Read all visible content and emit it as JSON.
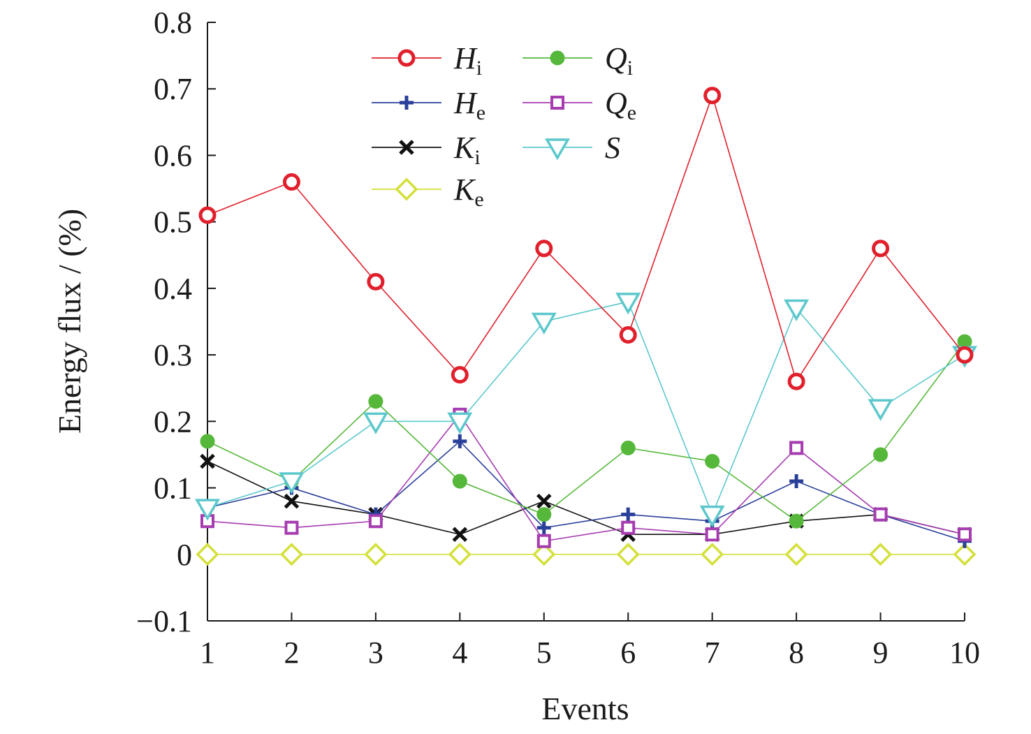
{
  "chart_data": {
    "type": "line",
    "xlabel": "Events",
    "ylabel": "Energy flux / (%)",
    "x": [
      1,
      2,
      3,
      4,
      5,
      6,
      7,
      8,
      9,
      10
    ],
    "xlim": [
      1,
      10
    ],
    "ylim": [
      -0.1,
      0.8
    ],
    "xticks": [
      "1",
      "2",
      "3",
      "4",
      "5",
      "6",
      "7",
      "8",
      "9",
      "10"
    ],
    "yticks": [
      "−0.1",
      "0",
      "0.1",
      "0.2",
      "0.3",
      "0.4",
      "0.5",
      "0.6",
      "0.7",
      "0.8"
    ],
    "ytick_values": [
      -0.1,
      0,
      0.1,
      0.2,
      0.3,
      0.4,
      0.5,
      0.6,
      0.7,
      0.8
    ],
    "grid": false,
    "legend_position": "top",
    "series": [
      {
        "name": "H",
        "sub": "i",
        "color": "#e0202c",
        "marker": "circle",
        "values": [
          0.51,
          0.56,
          0.41,
          0.27,
          0.46,
          0.33,
          0.69,
          0.26,
          0.46,
          0.3
        ]
      },
      {
        "name": "H",
        "sub": "e",
        "color": "#2a3f9a",
        "marker": "plus",
        "values": [
          0.07,
          0.1,
          0.06,
          0.17,
          0.04,
          0.06,
          0.05,
          0.11,
          0.06,
          0.02
        ]
      },
      {
        "name": "K",
        "sub": "i",
        "color": "#111111",
        "marker": "cross",
        "values": [
          0.14,
          0.08,
          0.06,
          0.03,
          0.08,
          0.03,
          0.03,
          0.05,
          0.06,
          0.03
        ]
      },
      {
        "name": "K",
        "sub": "e",
        "color": "#d4e03a",
        "marker": "diamond",
        "values": [
          0,
          0,
          0,
          0,
          0,
          0,
          0,
          0,
          0,
          0
        ]
      },
      {
        "name": "Q",
        "sub": "i",
        "color": "#55b83a",
        "marker": "dot",
        "values": [
          0.17,
          0.11,
          0.23,
          0.11,
          0.06,
          0.16,
          0.14,
          0.05,
          0.15,
          0.32
        ]
      },
      {
        "name": "Q",
        "sub": "e",
        "color": "#a63cb0",
        "marker": "square",
        "values": [
          0.05,
          0.04,
          0.05,
          0.21,
          0.02,
          0.04,
          0.03,
          0.16,
          0.06,
          0.03
        ]
      },
      {
        "name": "S",
        "sub": "",
        "color": "#5cc8cc",
        "marker": "triangle-down",
        "values": [
          0.07,
          0.11,
          0.2,
          0.2,
          0.35,
          0.38,
          0.06,
          0.37,
          0.22,
          0.3
        ]
      }
    ]
  }
}
